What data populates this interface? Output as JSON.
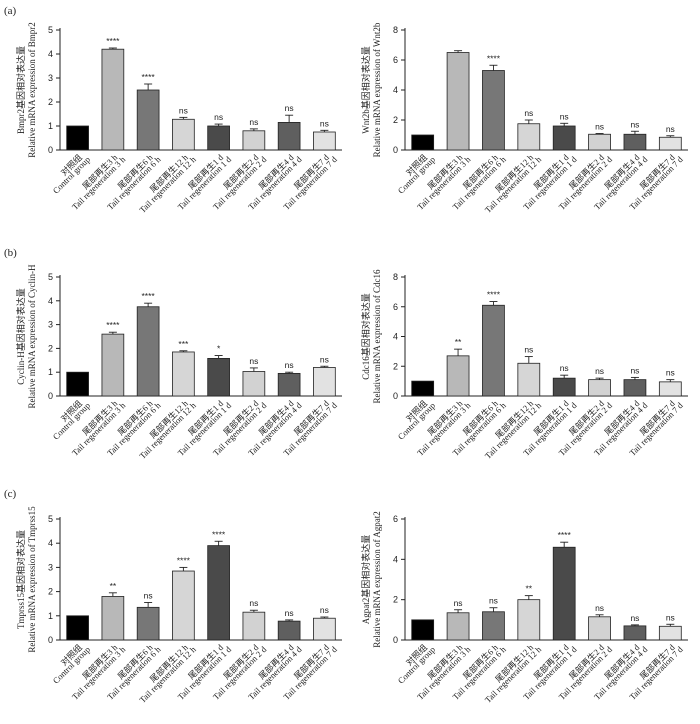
{
  "panel_letters": [
    "(a)",
    "(b)",
    "(c)"
  ],
  "colors": {
    "control": "#000000",
    "3h": "#b8b8b8",
    "6h": "#777777",
    "12h": "#d6d6d6",
    "1d": "#4a4a4a",
    "2d": "#d2d2d2",
    "4d": "#5f5f5f",
    "7d": "#e2e2e2"
  },
  "chart_data": [
    {
      "type": "bar",
      "panel": "(a)",
      "ylabel_cn": "Bmpr2基因相对表达量",
      "ylabel_en": "Relative mRNA expression of Bmpr2",
      "ylim": [
        0,
        5
      ],
      "yticks": [
        0,
        1,
        2,
        3,
        4,
        5
      ],
      "categories_cn": [
        "对照组",
        "尾部再生3 h",
        "尾部再生6 h",
        "尾部再生12 h",
        "尾部再生1 d",
        "尾部再生2 d",
        "尾部再生4 d",
        "尾部再生7 d"
      ],
      "categories_en": [
        "Control group",
        "Tail regeneration 3 h",
        "Tail regeneration 6 h",
        "Tail regeneration 12 h",
        "Tail regeneration 1 d",
        "Tail regeneration 2 d",
        "Tail regeneration 4 d",
        "Tail regeneration 7 d"
      ],
      "values": [
        1.0,
        4.2,
        2.5,
        1.28,
        1.0,
        0.8,
        1.15,
        0.75
      ],
      "errors": [
        0,
        0.05,
        0.25,
        0.08,
        0.08,
        0.08,
        0.3,
        0.07
      ],
      "significance": [
        "",
        "****",
        "****",
        "ns",
        "ns",
        "ns",
        "ns",
        "ns"
      ]
    },
    {
      "type": "bar",
      "panel": "",
      "ylabel_cn": "Wnt2b基因相对表达量",
      "ylabel_en": "Relative mRNA expression of Wnt2b",
      "ylim": [
        0,
        8
      ],
      "yticks": [
        0,
        2,
        4,
        6,
        8
      ],
      "categories_cn": [
        "对照组",
        "尾部再生3 h",
        "尾部再生6 h",
        "尾部再生12 h",
        "尾部再生1 d",
        "尾部再生2 d",
        "尾部再生4 d",
        "尾部再生7 d"
      ],
      "categories_en": [
        "Control group",
        "Tail regeneration 3 h",
        "Tail regeneration 6 h",
        "Tail regeneration 12 h",
        "Tail regeneration 1 d",
        "Tail regeneration 2 d",
        "Tail regeneration 4 d",
        "Tail regeneration 7 d"
      ],
      "values": [
        1.0,
        6.5,
        5.3,
        1.75,
        1.6,
        1.05,
        1.05,
        0.85
      ],
      "errors": [
        0,
        0.12,
        0.35,
        0.25,
        0.18,
        0.05,
        0.2,
        0.1
      ],
      "significance": [
        "",
        "",
        "****",
        "ns",
        "ns",
        "ns",
        "ns",
        "ns"
      ]
    },
    {
      "type": "bar",
      "panel": "(b)",
      "ylabel_cn": "Cyclin-H基因相对表达量",
      "ylabel_en": "Relative mRNA expression of Cyclin-H",
      "ylim": [
        0,
        5
      ],
      "yticks": [
        0,
        1,
        2,
        3,
        4,
        5
      ],
      "categories_cn": [
        "对照组",
        "尾部再生3 h",
        "尾部再生6 h",
        "尾部再生12 h",
        "尾部再生1 d",
        "尾部再生2 d",
        "尾部再生4 d",
        "尾部再生7 d"
      ],
      "categories_en": [
        "Control group",
        "Tail regeneration 3 h",
        "Tail regeneration 6 h",
        "Tail regeneration 12 h",
        "Tail regeneration 1 d",
        "Tail regeneration 2 d",
        "Tail regeneration 4 d",
        "Tail regeneration 7 d"
      ],
      "values": [
        1.0,
        2.6,
        3.75,
        1.85,
        1.58,
        1.03,
        0.95,
        1.2
      ],
      "errors": [
        0,
        0.08,
        0.15,
        0.05,
        0.12,
        0.15,
        0.05,
        0.05
      ],
      "significance": [
        "",
        "****",
        "****",
        "***",
        "*",
        "ns",
        "ns",
        "ns"
      ]
    },
    {
      "type": "bar",
      "panel": "",
      "ylabel_cn": "Cdc16基因相对表达量",
      "ylabel_en": "Relative mRNA expression of Cdc16",
      "ylim": [
        0,
        8
      ],
      "yticks": [
        0,
        2,
        4,
        6,
        8
      ],
      "categories_cn": [
        "对照组",
        "尾部再生3 h",
        "尾部再生6 h",
        "尾部再生12 h",
        "尾部再生1 d",
        "尾部再生2 d",
        "尾部再生4 d",
        "尾部再生7 d"
      ],
      "categories_en": [
        "Control group",
        "Tail regeneration 3 h",
        "Tail regeneration 6 h",
        "Tail regeneration 12 h",
        "Tail regeneration 1 d",
        "Tail regeneration 2 d",
        "Tail regeneration 4 d",
        "Tail regeneration 7 d"
      ],
      "values": [
        1.0,
        2.7,
        6.1,
        2.2,
        1.2,
        1.1,
        1.1,
        0.95
      ],
      "errors": [
        0,
        0.45,
        0.25,
        0.45,
        0.2,
        0.1,
        0.15,
        0.15
      ],
      "significance": [
        "",
        "**",
        "****",
        "ns",
        "ns",
        "ns",
        "ns",
        "ns"
      ]
    },
    {
      "type": "bar",
      "panel": "(c)",
      "ylabel_cn": "Tmprss15基因相对表达量",
      "ylabel_en": "Relative mRNA expression of Tmprss15",
      "ylim": [
        0,
        5
      ],
      "yticks": [
        0,
        1,
        2,
        3,
        4,
        5
      ],
      "categories_cn": [
        "对照组",
        "尾部再生3 h",
        "尾部再生6 h",
        "尾部再生12 h",
        "尾部再生1 d",
        "尾部再生2 d",
        "尾部再生4 d",
        "尾部再生7 d"
      ],
      "categories_en": [
        "Control group",
        "Tail regeneration 3 h",
        "Tail regeneration 6 h",
        "Tail regeneration 12 h",
        "Tail regeneration 1 d",
        "Tail regeneration 2 d",
        "Tail regeneration 4 d",
        "Tail regeneration 7 d"
      ],
      "values": [
        1.0,
        1.8,
        1.35,
        2.85,
        3.9,
        1.15,
        0.78,
        0.9
      ],
      "errors": [
        0,
        0.15,
        0.2,
        0.15,
        0.18,
        0.08,
        0.05,
        0.05
      ],
      "significance": [
        "",
        "**",
        "ns",
        "****",
        "****",
        "ns",
        "ns",
        "ns"
      ]
    },
    {
      "type": "bar",
      "panel": "",
      "ylabel_cn": "Agpat2基因相对表达量",
      "ylabel_en": "Relative mRNA expression of Agpat2",
      "ylim": [
        0,
        6
      ],
      "yticks": [
        0,
        2,
        4,
        6
      ],
      "categories_cn": [
        "对照组",
        "尾部再生3 h",
        "尾部再生6 h",
        "尾部再生12 h",
        "尾部再生1 d",
        "尾部再生2 d",
        "尾部再生4 d",
        "尾部再生7 d"
      ],
      "categories_en": [
        "Control group",
        "Tail regeneration 3 h",
        "Tail regeneration 6 h",
        "Tail regeneration 12 h",
        "Tail regeneration 1 d",
        "Tail regeneration 2 d",
        "Tail regeneration 4 d",
        "Tail regeneration 7 d"
      ],
      "values": [
        1.0,
        1.35,
        1.4,
        2.0,
        4.6,
        1.15,
        0.7,
        0.68
      ],
      "errors": [
        0,
        0.15,
        0.2,
        0.2,
        0.25,
        0.1,
        0.05,
        0.1
      ],
      "significance": [
        "",
        "ns",
        "ns",
        "**",
        "****",
        "ns",
        "ns",
        "ns"
      ]
    }
  ]
}
